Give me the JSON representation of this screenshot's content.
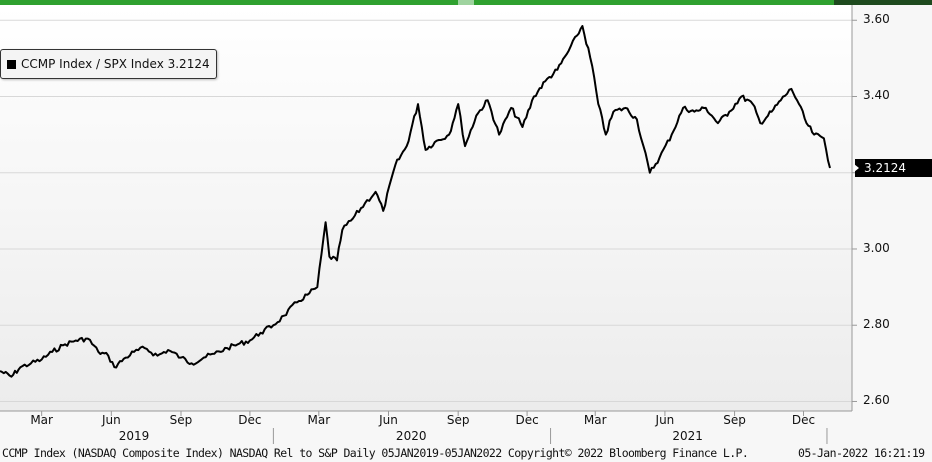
{
  "chart_data": {
    "type": "line",
    "title": "",
    "legend": {
      "label": "CCMP Index / SPX Index 3.2124",
      "placement": "top-left"
    },
    "yaxis": {
      "ticks": [
        "2.60",
        "2.80",
        "3.00",
        "3.20",
        "3.40",
        "3.60"
      ],
      "ylim": [
        2.575,
        3.64
      ],
      "side": "right"
    },
    "last_value": "3.2124",
    "xaxis": {
      "month_ticks": [
        {
          "date": "2019-03-01",
          "label": "Mar"
        },
        {
          "date": "2019-06-01",
          "label": "Jun"
        },
        {
          "date": "2019-09-01",
          "label": "Sep"
        },
        {
          "date": "2019-12-01",
          "label": "Dec"
        },
        {
          "date": "2020-03-01",
          "label": "Mar"
        },
        {
          "date": "2020-06-01",
          "label": "Jun"
        },
        {
          "date": "2020-09-01",
          "label": "Sep"
        },
        {
          "date": "2020-12-01",
          "label": "Dec"
        },
        {
          "date": "2021-03-01",
          "label": "Mar"
        },
        {
          "date": "2021-06-01",
          "label": "Jun"
        },
        {
          "date": "2021-09-01",
          "label": "Sep"
        },
        {
          "date": "2021-12-01",
          "label": "Dec"
        }
      ],
      "years": [
        {
          "date": "2019-07-01",
          "label": "2019"
        },
        {
          "date": "2020-07-01",
          "label": "2020"
        },
        {
          "date": "2021-07-01",
          "label": "2021"
        }
      ],
      "xlim": [
        "2019-01-05",
        "2022-01-05"
      ]
    },
    "grid": "horizontal",
    "series": [
      {
        "values": [
          [
            "2019-01-05",
            2.68
          ],
          [
            "2019-01-20",
            2.665
          ],
          [
            "2019-02-01",
            2.69
          ],
          [
            "2019-02-15",
            2.7
          ],
          [
            "2019-03-01",
            2.71
          ],
          [
            "2019-03-15",
            2.73
          ],
          [
            "2019-04-01",
            2.75
          ],
          [
            "2019-04-15",
            2.76
          ],
          [
            "2019-05-01",
            2.765
          ],
          [
            "2019-05-15",
            2.73
          ],
          [
            "2019-05-28",
            2.72
          ],
          [
            "2019-06-05",
            2.69
          ],
          [
            "2019-06-20",
            2.715
          ],
          [
            "2019-07-01",
            2.73
          ],
          [
            "2019-07-15",
            2.74
          ],
          [
            "2019-08-01",
            2.72
          ],
          [
            "2019-08-15",
            2.735
          ],
          [
            "2019-09-01",
            2.715
          ],
          [
            "2019-09-15",
            2.7
          ],
          [
            "2019-10-01",
            2.715
          ],
          [
            "2019-10-15",
            2.725
          ],
          [
            "2019-11-01",
            2.74
          ],
          [
            "2019-11-15",
            2.75
          ],
          [
            "2019-12-01",
            2.76
          ],
          [
            "2019-12-15",
            2.78
          ],
          [
            "2020-01-01",
            2.8
          ],
          [
            "2020-01-15",
            2.825
          ],
          [
            "2020-02-01",
            2.86
          ],
          [
            "2020-02-15",
            2.88
          ],
          [
            "2020-02-28",
            2.9
          ],
          [
            "2020-03-10",
            3.07
          ],
          [
            "2020-03-15",
            2.98
          ],
          [
            "2020-03-25",
            2.97
          ],
          [
            "2020-04-01",
            3.05
          ],
          [
            "2020-04-15",
            3.08
          ],
          [
            "2020-05-01",
            3.12
          ],
          [
            "2020-05-15",
            3.15
          ],
          [
            "2020-05-25",
            3.1
          ],
          [
            "2020-06-10",
            3.22
          ],
          [
            "2020-06-25",
            3.27
          ],
          [
            "2020-07-10",
            3.38
          ],
          [
            "2020-07-20",
            3.26
          ],
          [
            "2020-08-01",
            3.28
          ],
          [
            "2020-08-20",
            3.3
          ],
          [
            "2020-09-01",
            3.38
          ],
          [
            "2020-09-10",
            3.27
          ],
          [
            "2020-09-25",
            3.35
          ],
          [
            "2020-10-10",
            3.39
          ],
          [
            "2020-10-25",
            3.3
          ],
          [
            "2020-11-10",
            3.37
          ],
          [
            "2020-11-25",
            3.32
          ],
          [
            "2020-12-10",
            3.4
          ],
          [
            "2020-12-25",
            3.44
          ],
          [
            "2021-01-10",
            3.47
          ],
          [
            "2021-01-25",
            3.52
          ],
          [
            "2021-02-05",
            3.56
          ],
          [
            "2021-02-12",
            3.585
          ],
          [
            "2021-02-25",
            3.48
          ],
          [
            "2021-03-05",
            3.38
          ],
          [
            "2021-03-15",
            3.3
          ],
          [
            "2021-03-25",
            3.36
          ],
          [
            "2021-04-10",
            3.37
          ],
          [
            "2021-04-25",
            3.34
          ],
          [
            "2021-05-12",
            3.2
          ],
          [
            "2021-05-25",
            3.24
          ],
          [
            "2021-06-10",
            3.3
          ],
          [
            "2021-06-25",
            3.37
          ],
          [
            "2021-07-10",
            3.36
          ],
          [
            "2021-07-25",
            3.37
          ],
          [
            "2021-08-10",
            3.33
          ],
          [
            "2021-08-25",
            3.36
          ],
          [
            "2021-09-10",
            3.4
          ],
          [
            "2021-09-25",
            3.38
          ],
          [
            "2021-10-05",
            3.33
          ],
          [
            "2021-10-20",
            3.36
          ],
          [
            "2021-11-01",
            3.39
          ],
          [
            "2021-11-15",
            3.42
          ],
          [
            "2021-11-25",
            3.38
          ],
          [
            "2021-12-05",
            3.33
          ],
          [
            "2021-12-15",
            3.3
          ],
          [
            "2021-12-28",
            3.29
          ],
          [
            "2022-01-05",
            3.2124
          ]
        ]
      }
    ]
  },
  "footer": {
    "left": "CCMP Index (NASDAQ Composite Index) NASDAQ Rel to S&P  Daily 05JAN2019-05JAN2022   Copyright© 2022 Bloomberg Finance L.P.",
    "right": "05-Jan-2022 16:21:19"
  },
  "colors": {
    "line": "#000000",
    "top_bar": "#2fa12f",
    "grid": "#d8d8d8"
  }
}
